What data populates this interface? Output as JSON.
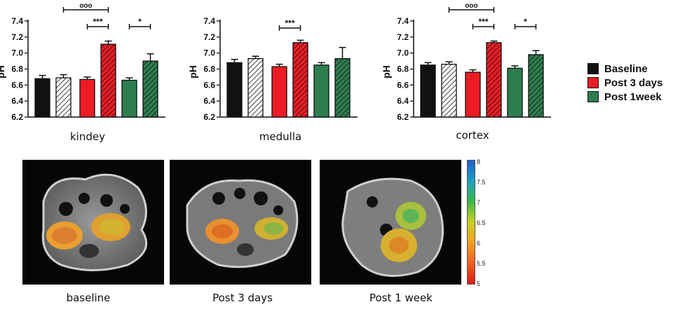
{
  "chart_data": [
    {
      "type": "bar",
      "name": "kindey",
      "ylabel": "pH",
      "ylim": [
        6.2,
        7.4
      ],
      "yticks": [
        "6.2",
        "6.4",
        "6.6",
        "6.8",
        "7.0",
        "7.2",
        "7.4"
      ],
      "categories": [
        "Baseline",
        "Baseline (hatched)",
        "Post 3 days",
        "Post 3 days (hatched)",
        "Post 1week",
        "Post 1week (hatched)"
      ],
      "values": [
        6.68,
        6.69,
        6.67,
        7.11,
        6.66,
        6.9
      ],
      "errors": [
        0.04,
        0.04,
        0.03,
        0.04,
        0.03,
        0.09
      ],
      "significance": [
        {
          "from": 1,
          "to": 3,
          "label": "ooo"
        },
        {
          "from": 2,
          "to": 3,
          "label": "***"
        },
        {
          "from": 4,
          "to": 5,
          "label": "*"
        }
      ]
    },
    {
      "type": "bar",
      "name": "medulla",
      "ylabel": "pH",
      "ylim": [
        6.2,
        7.4
      ],
      "yticks": [
        "6.2",
        "6.4",
        "6.6",
        "6.8",
        "7.0",
        "7.2",
        "7.4"
      ],
      "categories": [
        "Baseline",
        "Baseline (hatched)",
        "Post 3 days",
        "Post 3 days (hatched)",
        "Post 1week",
        "Post 1week (hatched)"
      ],
      "values": [
        6.88,
        6.93,
        6.83,
        7.13,
        6.85,
        6.93
      ],
      "errors": [
        0.04,
        0.03,
        0.03,
        0.03,
        0.03,
        0.14
      ],
      "significance": [
        {
          "from": 2,
          "to": 3,
          "label": "***"
        }
      ]
    },
    {
      "type": "bar",
      "name": "cortex",
      "ylabel": "pH",
      "ylim": [
        6.2,
        7.4
      ],
      "yticks": [
        "6.2",
        "6.4",
        "6.6",
        "6.8",
        "7.0",
        "7.2",
        "7.4"
      ],
      "categories": [
        "Baseline",
        "Baseline (hatched)",
        "Post 3 days",
        "Post 3 days (hatched)",
        "Post 1week",
        "Post 1week (hatched)"
      ],
      "values": [
        6.85,
        6.86,
        6.76,
        7.13,
        6.81,
        6.98
      ],
      "errors": [
        0.03,
        0.03,
        0.03,
        0.02,
        0.03,
        0.05
      ],
      "significance": [
        {
          "from": 1,
          "to": 3,
          "label": "ooo"
        },
        {
          "from": 2,
          "to": 3,
          "label": "***"
        },
        {
          "from": 4,
          "to": 5,
          "label": "*"
        }
      ]
    }
  ],
  "legend": [
    {
      "label": "Baseline",
      "color": "#111111"
    },
    {
      "label": "Post 3 days",
      "color": "#ed1c24"
    },
    {
      "label": "Post 1week",
      "color": "#2e7d4f"
    }
  ],
  "colors": {
    "baseline": "#111111",
    "post3": "#ed1c24",
    "post1w": "#2e7d4f"
  },
  "images": [
    {
      "caption": "baseline"
    },
    {
      "caption": "Post 3 days"
    },
    {
      "caption": "Post 1 week"
    }
  ],
  "colorbar": {
    "ticks": [
      "8",
      "7.5",
      "7",
      "6.5",
      "6",
      "5.5",
      "5"
    ],
    "colors": [
      "#1f5fd0",
      "#1fa0c0",
      "#3cb848",
      "#c8d020",
      "#f0a020",
      "#f06020",
      "#e01818"
    ]
  }
}
